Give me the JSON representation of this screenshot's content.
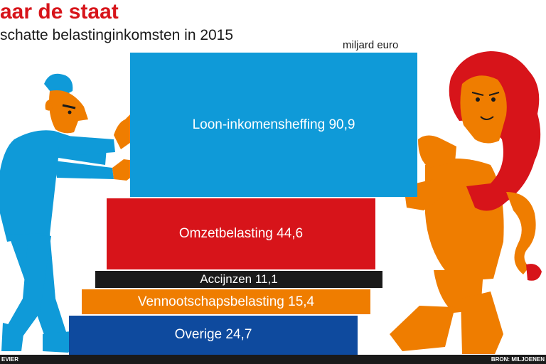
{
  "header": {
    "title": "aar de staat",
    "subtitle": "schatte belastinginkomsten in 2015",
    "unit": "miljard euro"
  },
  "footer": {
    "credit": "EVIER",
    "source": "BRON: MILJOENEN"
  },
  "colors": {
    "blue": "#0f9ad8",
    "red": "#d7141a",
    "black": "#1a1a1a",
    "orange": "#ef7d00",
    "navy": "#0e4a9e"
  },
  "illustration": {
    "left": "man-pushing-icon",
    "right": "lion-pushing-icon"
  },
  "chart_data": {
    "type": "bar",
    "categories": [
      "Loon-inkomensheffing",
      "Omzetbelasting",
      "Accijnzen",
      "Vennootschapsbelasting",
      "Overige"
    ],
    "values": [
      90.9,
      44.6,
      11.1,
      15.4,
      24.7
    ],
    "labels": [
      "Loon-inkomensheffing 90,9",
      "Omzetbelasting 44,6",
      "Accijnzen 11,1",
      "Vennootschapsbelasting 15,4",
      "Overige 24,7"
    ],
    "colors": [
      "#0f9ad8",
      "#d7141a",
      "#1a1a1a",
      "#ef7d00",
      "#0e4a9e"
    ],
    "unit": "miljard euro",
    "orientation": "stacked-blocks"
  }
}
